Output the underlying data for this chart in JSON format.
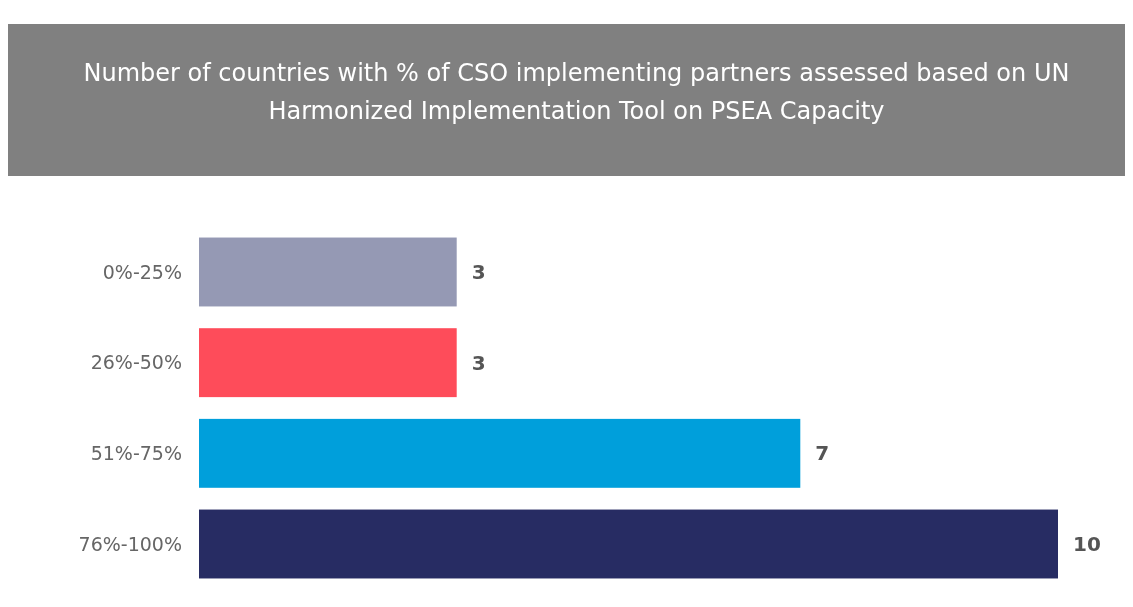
{
  "chart_data": {
    "type": "bar",
    "orientation": "horizontal",
    "title": "Number of countries with % of CSO implementing partners assessed based on UN Harmonized Implementation Tool on PSEA Capacity",
    "categories": [
      "0%-25%",
      "26%-50%",
      "51%-75%",
      "76%-100%"
    ],
    "values": [
      3,
      3,
      7,
      10
    ],
    "colors": [
      "#9599b4",
      "#fe4c5a",
      "#009fdb",
      "#272c63"
    ],
    "data_labels": true
  }
}
